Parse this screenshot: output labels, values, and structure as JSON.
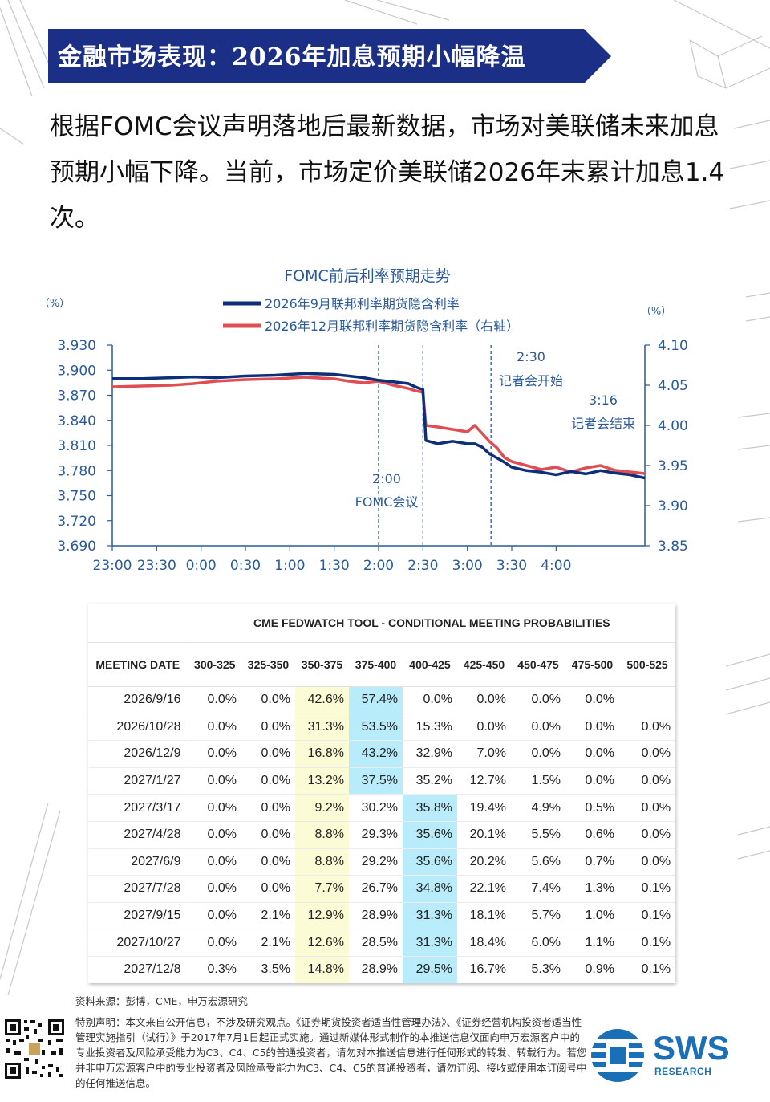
{
  "banner": {
    "title": "金融市场表现：2026年加息预期小幅降温"
  },
  "intro": {
    "text": "根据FOMC会议声明落地后最新数据，市场对美联储未来加息预期小幅下降。当前，市场定价美联储2026年末累计加息1.4次。"
  },
  "chart_data": {
    "type": "line",
    "title": "FOMC前后利率预期走势",
    "y_left_unit": "（%）",
    "y_right_unit": "（%）",
    "y_left_range": [
      3.69,
      3.93
    ],
    "y_right_range": [
      3.85,
      4.1
    ],
    "y_left_ticks": [
      "3.930",
      "3.900",
      "3.870",
      "3.840",
      "3.810",
      "3.780",
      "3.750",
      "3.720",
      "3.690"
    ],
    "y_right_ticks": [
      "4.10",
      "4.05",
      "4.00",
      "3.95",
      "3.90",
      "3.85"
    ],
    "x_ticks": [
      "23:00",
      "23:30",
      "0:00",
      "0:30",
      "1:00",
      "1:30",
      "2:00",
      "2:30",
      "3:00",
      "3:30",
      "4:00"
    ],
    "x_range_minutes": [
      0,
      300
    ],
    "legend_position": "top",
    "series": [
      {
        "name": "2026年9月联邦利率期货隐含利率",
        "axis": "left",
        "color": "#0d2f7a",
        "points": [
          [
            0,
            3.89
          ],
          [
            20,
            3.89
          ],
          [
            40,
            3.891
          ],
          [
            55,
            3.892
          ],
          [
            70,
            3.891
          ],
          [
            90,
            3.893
          ],
          [
            110,
            3.894
          ],
          [
            130,
            3.896
          ],
          [
            150,
            3.895
          ],
          [
            160,
            3.893
          ],
          [
            170,
            3.891
          ],
          [
            180,
            3.888
          ],
          [
            190,
            3.886
          ],
          [
            200,
            3.884
          ],
          [
            205,
            3.88
          ],
          [
            208,
            3.878
          ],
          [
            210,
            3.877
          ],
          [
            212,
            3.816
          ],
          [
            220,
            3.812
          ],
          [
            230,
            3.815
          ],
          [
            240,
            3.812
          ],
          [
            245,
            3.812
          ],
          [
            250,
            3.808
          ],
          [
            255,
            3.8
          ],
          [
            260,
            3.795
          ],
          [
            265,
            3.79
          ],
          [
            270,
            3.784
          ],
          [
            280,
            3.78
          ],
          [
            290,
            3.778
          ],
          [
            300,
            3.775
          ],
          [
            310,
            3.779
          ],
          [
            320,
            3.776
          ],
          [
            330,
            3.78
          ],
          [
            340,
            3.777
          ],
          [
            350,
            3.775
          ],
          [
            360,
            3.771
          ]
        ]
      },
      {
        "name": "2026年12月联邦利率期货隐含利率（右轴）",
        "axis": "right",
        "color": "#e04d52",
        "points": [
          [
            0,
            4.048
          ],
          [
            20,
            4.049
          ],
          [
            40,
            4.05
          ],
          [
            55,
            4.052
          ],
          [
            70,
            4.055
          ],
          [
            90,
            4.057
          ],
          [
            110,
            4.058
          ],
          [
            130,
            4.06
          ],
          [
            150,
            4.058
          ],
          [
            160,
            4.055
          ],
          [
            170,
            4.053
          ],
          [
            180,
            4.055
          ],
          [
            190,
            4.05
          ],
          [
            200,
            4.046
          ],
          [
            205,
            4.043
          ],
          [
            208,
            4.042
          ],
          [
            210,
            4.041
          ],
          [
            212,
            4.0
          ],
          [
            220,
            3.998
          ],
          [
            230,
            3.995
          ],
          [
            240,
            3.992
          ],
          [
            245,
            4.0
          ],
          [
            250,
            3.99
          ],
          [
            255,
            3.98
          ],
          [
            260,
            3.972
          ],
          [
            265,
            3.96
          ],
          [
            270,
            3.955
          ],
          [
            280,
            3.95
          ],
          [
            290,
            3.945
          ],
          [
            300,
            3.948
          ],
          [
            310,
            3.942
          ],
          [
            320,
            3.947
          ],
          [
            330,
            3.95
          ],
          [
            340,
            3.944
          ],
          [
            350,
            3.942
          ],
          [
            360,
            3.94
          ]
        ]
      }
    ],
    "annotations": [
      {
        "time": "2:00",
        "label": "FOMC会议",
        "minute": 180
      },
      {
        "time": "2:30",
        "label": "记者会开始",
        "minute": 210
      },
      {
        "time": "3:16",
        "label": "记者会结束",
        "minute": 256
      }
    ]
  },
  "table": {
    "title": "CME FEDWATCH TOOL - CONDITIONAL MEETING PROBABILITIES",
    "headers": [
      "MEETING DATE",
      "300-325",
      "325-350",
      "350-375",
      "375-400",
      "400-425",
      "425-450",
      "450-475",
      "475-500",
      "500-525"
    ],
    "rows": [
      [
        "2026/9/16",
        "0.0%",
        "0.0%",
        "42.6%",
        "57.4%",
        "0.0%",
        "0.0%",
        "0.0%",
        "0.0%",
        ""
      ],
      [
        "2026/10/28",
        "0.0%",
        "0.0%",
        "31.3%",
        "53.5%",
        "15.3%",
        "0.0%",
        "0.0%",
        "0.0%",
        "0.0%"
      ],
      [
        "2026/12/9",
        "0.0%",
        "0.0%",
        "16.8%",
        "43.2%",
        "32.9%",
        "7.0%",
        "0.0%",
        "0.0%",
        "0.0%"
      ],
      [
        "2027/1/27",
        "0.0%",
        "0.0%",
        "13.2%",
        "37.5%",
        "35.2%",
        "12.7%",
        "1.5%",
        "0.0%",
        "0.0%"
      ],
      [
        "2027/3/17",
        "0.0%",
        "0.0%",
        "9.2%",
        "30.2%",
        "35.8%",
        "19.4%",
        "4.9%",
        "0.5%",
        "0.0%"
      ],
      [
        "2027/4/28",
        "0.0%",
        "0.0%",
        "8.8%",
        "29.3%",
        "35.6%",
        "20.1%",
        "5.5%",
        "0.6%",
        "0.0%"
      ],
      [
        "2027/6/9",
        "0.0%",
        "0.0%",
        "8.8%",
        "29.2%",
        "35.6%",
        "20.2%",
        "5.6%",
        "0.7%",
        "0.0%"
      ],
      [
        "2027/7/28",
        "0.0%",
        "0.0%",
        "7.7%",
        "26.7%",
        "34.8%",
        "22.1%",
        "7.4%",
        "1.3%",
        "0.1%"
      ],
      [
        "2027/9/15",
        "0.0%",
        "2.1%",
        "12.9%",
        "28.9%",
        "31.3%",
        "18.1%",
        "5.7%",
        "1.0%",
        "0.1%"
      ],
      [
        "2027/10/27",
        "0.0%",
        "2.1%",
        "12.6%",
        "28.5%",
        "31.3%",
        "18.4%",
        "6.0%",
        "1.1%",
        "0.1%"
      ],
      [
        "2027/12/8",
        "0.3%",
        "3.5%",
        "14.8%",
        "28.9%",
        "29.5%",
        "16.7%",
        "5.3%",
        "0.9%",
        "0.1%"
      ]
    ],
    "highlight": {
      "yellow_col": 3,
      "blue_col_by_row": [
        4,
        4,
        4,
        4,
        5,
        5,
        5,
        5,
        5,
        5,
        5
      ]
    },
    "colors": {
      "yellow": "#fbfbd6",
      "blue": "#b9ecfa"
    }
  },
  "footer": {
    "source": "资料来源：彭博，CME，申万宏源研究",
    "disclaimer": "特别声明：本文来自公开信息，不涉及研究观点。《证券期货投资者适当性管理办法》、《证券经营机构投资者适当性管理实施指引（试行）》于2017年7月1日起正式实施。通过新媒体形式制作的本推送信息仅面向申万宏源客户中的专业投资者及风险承受能力为C3、C4、C5的普通投资者，请勿对本推送信息进行任何形式的转发、转载行为。若您并非申万宏源客户中的专业投资者及风险承受能力为C3、C4、C5的普通投资者，请勿订阅、接收或使用本订阅号中的任何推送信息。"
  },
  "logo": {
    "name": "SWS",
    "sub": "RESEARCH",
    "color": "#1a6fb7"
  }
}
